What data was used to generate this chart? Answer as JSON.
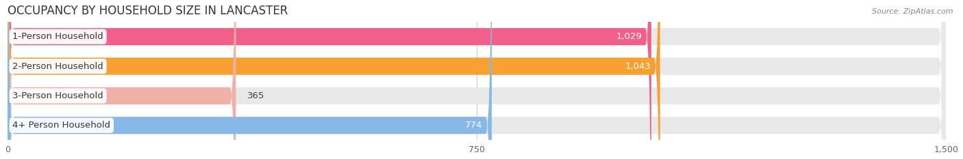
{
  "title": "OCCUPANCY BY HOUSEHOLD SIZE IN LANCASTER",
  "source": "Source: ZipAtlas.com",
  "categories": [
    "1-Person Household",
    "2-Person Household",
    "3-Person Household",
    "4+ Person Household"
  ],
  "values": [
    1029,
    1043,
    365,
    774
  ],
  "bar_colors": [
    "#f0608a",
    "#f5a030",
    "#f0b0a8",
    "#88b8e8"
  ],
  "bar_bg_color": "#e8e8e8",
  "xlim": [
    0,
    1500
  ],
  "xticks": [
    0,
    750,
    1500
  ],
  "value_labels": [
    "1,029",
    "1,043",
    "365",
    "774"
  ],
  "background_color": "#ffffff",
  "title_fontsize": 12,
  "label_fontsize": 9.5,
  "tick_fontsize": 9,
  "source_fontsize": 8
}
